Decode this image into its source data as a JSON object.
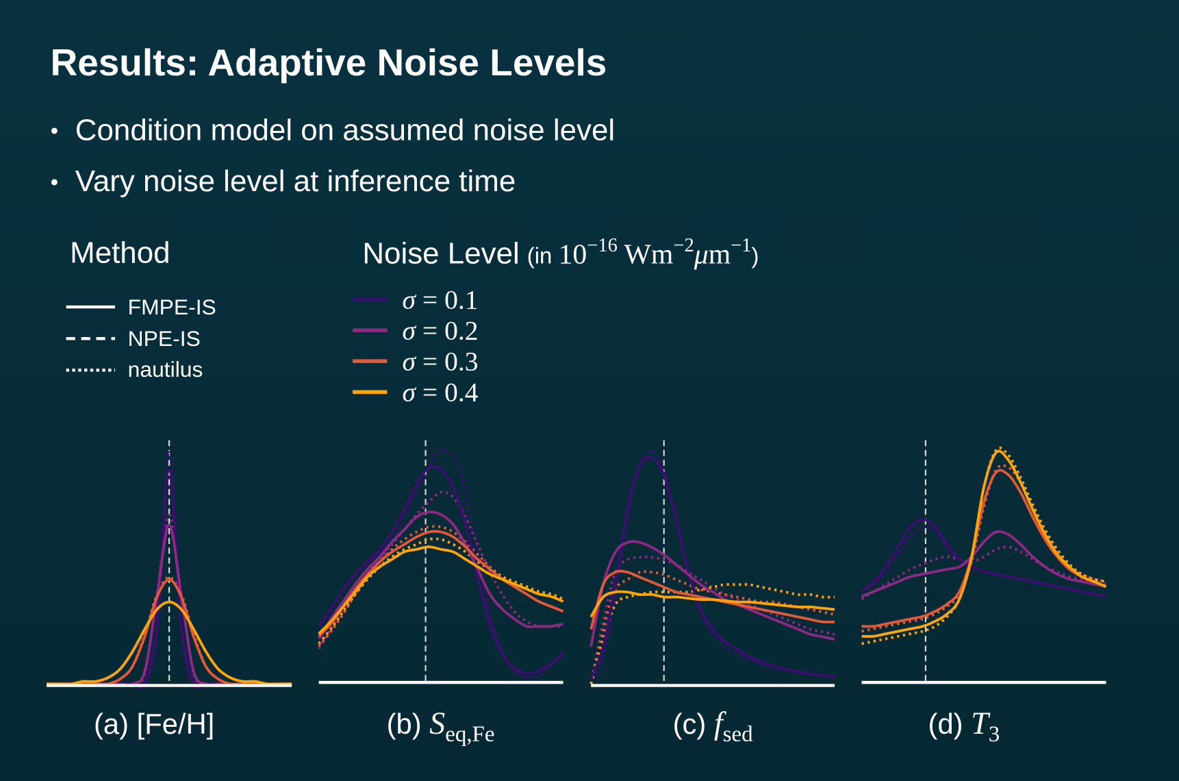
{
  "slide": {
    "title": "Results: Adaptive Noise Levels",
    "bullets": [
      "Condition model on assumed noise level",
      "Vary noise level at inference time"
    ],
    "bullet_glyph": "•"
  },
  "legend_method": {
    "title": "Method",
    "items": [
      {
        "label": "FMPE-IS",
        "style": "solid"
      },
      {
        "label": "NPE-IS",
        "style": "dashed"
      },
      {
        "label": "nautilus",
        "style": "dotted"
      }
    ]
  },
  "legend_noise": {
    "title": "Noise Level",
    "unit_prefix": "(in ",
    "unit_base": "10",
    "unit_exp1": "−16",
    "unit_w": " Wm",
    "unit_exp2": "−2",
    "unit_mu": "μ",
    "unit_m": "m",
    "unit_exp3": "−1",
    "unit_suffix": ")",
    "items": [
      {
        "sigma": "σ",
        "eq": " = 0.1",
        "color": "#3b0f70"
      },
      {
        "sigma": "σ",
        "eq": " = 0.2",
        "color": "#8c2981"
      },
      {
        "sigma": "σ",
        "eq": " = 0.3",
        "color": "#e05a3a"
      },
      {
        "sigma": "σ",
        "eq": " = 0.4",
        "color": "#fca50a"
      }
    ]
  },
  "colors": {
    "background_top": "#08313f",
    "background_bottom": "#062833",
    "truth_line": "#d8d8d8",
    "axis": "#ffffff"
  },
  "chart_data": [
    {
      "type": "line",
      "label_prefix": "(a) ",
      "label_main": "[Fe/H]",
      "label_sub": "",
      "truth_marker": "dashed vertical line at true value",
      "grid": false,
      "series": [
        {
          "name": "σ = 0.1",
          "method": "FMPE-IS",
          "values": [
            0,
            0,
            0,
            0,
            0,
            0,
            0,
            0,
            0,
            0.23,
            0.86,
            0.23,
            0,
            0,
            0,
            0,
            0,
            0,
            0,
            0,
            0
          ]
        },
        {
          "name": "σ = 0.2",
          "method": "FMPE-IS",
          "values": [
            0,
            0,
            0,
            0,
            0,
            0,
            0,
            0,
            0.05,
            0.35,
            0.64,
            0.35,
            0.05,
            0,
            0,
            0,
            0,
            0,
            0,
            0,
            0
          ]
        },
        {
          "name": "σ = 0.3",
          "method": "FMPE-IS",
          "values": [
            0,
            0,
            0,
            0,
            0,
            0,
            0.02,
            0.07,
            0.19,
            0.35,
            0.42,
            0.35,
            0.19,
            0.07,
            0.02,
            0,
            0,
            0,
            0,
            0,
            0
          ]
        },
        {
          "name": "σ = 0.4",
          "method": "FMPE-IS",
          "values": [
            0,
            0,
            0,
            0.01,
            0.01,
            0.025,
            0.06,
            0.13,
            0.22,
            0.3,
            0.33,
            0.3,
            0.22,
            0.13,
            0.06,
            0.025,
            0.01,
            0.01,
            0,
            0,
            0
          ]
        },
        {
          "name": "σ = 0.1",
          "method": "nautilus",
          "values": [
            0,
            0,
            0,
            0,
            0,
            0,
            0,
            0,
            0,
            0.2,
            0.94,
            0.2,
            0,
            0,
            0,
            0,
            0,
            0,
            0,
            0,
            0
          ]
        },
        {
          "name": "σ = 0.2",
          "method": "nautilus",
          "values": [
            0,
            0,
            0,
            0,
            0,
            0,
            0,
            0,
            0.04,
            0.36,
            0.68,
            0.36,
            0.04,
            0,
            0,
            0,
            0,
            0,
            0,
            0,
            0
          ]
        },
        {
          "name": "σ = 0.3",
          "method": "nautilus",
          "values": [
            0,
            0,
            0,
            0,
            0,
            0,
            0.02,
            0.07,
            0.2,
            0.36,
            0.43,
            0.36,
            0.2,
            0.07,
            0.02,
            0,
            0,
            0,
            0,
            0,
            0
          ]
        },
        {
          "name": "σ = 0.4",
          "method": "nautilus",
          "values": [
            0,
            0,
            0,
            0.01,
            0.01,
            0.025,
            0.06,
            0.13,
            0.22,
            0.3,
            0.33,
            0.3,
            0.22,
            0.13,
            0.06,
            0.025,
            0.01,
            0.01,
            0,
            0,
            0
          ]
        }
      ]
    },
    {
      "type": "line",
      "label_prefix": "(b) ",
      "label_main": "S",
      "label_sub": "eq,Fe",
      "truth_marker": "dashed vertical line at true value",
      "grid": false,
      "series": [
        {
          "name": "σ = 0.1",
          "method": "FMPE-IS",
          "values": [
            0.22,
            0.29,
            0.37,
            0.43,
            0.48,
            0.53,
            0.6,
            0.69,
            0.79,
            0.86,
            0.85,
            0.78,
            0.63,
            0.42,
            0.23,
            0.11,
            0.05,
            0.03,
            0.04,
            0.07,
            0.11
          ]
        },
        {
          "name": "σ = 0.2",
          "method": "FMPE-IS",
          "values": [
            0.17,
            0.25,
            0.32,
            0.39,
            0.45,
            0.5,
            0.56,
            0.61,
            0.66,
            0.68,
            0.67,
            0.63,
            0.55,
            0.45,
            0.35,
            0.29,
            0.25,
            0.22,
            0.22,
            0.22,
            0.23
          ]
        },
        {
          "name": "σ = 0.3",
          "method": "FMPE-IS",
          "values": [
            0.18,
            0.23,
            0.3,
            0.37,
            0.43,
            0.48,
            0.52,
            0.55,
            0.58,
            0.6,
            0.6,
            0.58,
            0.54,
            0.49,
            0.45,
            0.41,
            0.38,
            0.35,
            0.32,
            0.3,
            0.28
          ]
        },
        {
          "name": "σ = 0.4",
          "method": "FMPE-IS",
          "values": [
            0.19,
            0.24,
            0.3,
            0.36,
            0.42,
            0.46,
            0.49,
            0.52,
            0.53,
            0.54,
            0.53,
            0.52,
            0.49,
            0.46,
            0.43,
            0.41,
            0.39,
            0.37,
            0.35,
            0.34,
            0.32
          ]
        },
        {
          "name": "σ = 0.1",
          "method": "nautilus",
          "values": [
            0.15,
            0.24,
            0.32,
            0.39,
            0.45,
            0.51,
            0.57,
            0.65,
            0.76,
            0.86,
            0.93,
            0.9,
            0.76,
            0.52,
            0.28,
            0.12,
            0.04,
            0.01,
            0.02,
            0.06,
            0.12
          ]
        },
        {
          "name": "σ = 0.2",
          "method": "nautilus",
          "values": [
            0.13,
            0.21,
            0.29,
            0.36,
            0.43,
            0.49,
            0.55,
            0.61,
            0.67,
            0.72,
            0.76,
            0.74,
            0.66,
            0.55,
            0.44,
            0.35,
            0.28,
            0.24,
            0.22,
            0.22,
            0.22
          ]
        },
        {
          "name": "σ = 0.3",
          "method": "nautilus",
          "values": [
            0.14,
            0.2,
            0.27,
            0.35,
            0.42,
            0.48,
            0.53,
            0.57,
            0.6,
            0.62,
            0.62,
            0.6,
            0.56,
            0.51,
            0.46,
            0.42,
            0.38,
            0.35,
            0.32,
            0.3,
            0.28
          ]
        },
        {
          "name": "σ = 0.4",
          "method": "nautilus",
          "values": [
            0.15,
            0.21,
            0.28,
            0.35,
            0.41,
            0.46,
            0.5,
            0.53,
            0.55,
            0.57,
            0.57,
            0.55,
            0.52,
            0.48,
            0.45,
            0.42,
            0.4,
            0.38,
            0.36,
            0.35,
            0.33
          ]
        }
      ]
    },
    {
      "type": "line",
      "label_prefix": "(c) ",
      "label_main": "f",
      "label_sub": "sed",
      "truth_marker": "dashed vertical line at true value",
      "grid": false,
      "series": [
        {
          "name": "σ = 0.1",
          "method": "FMPE-IS",
          "values": [
            0.02,
            0.15,
            0.4,
            0.7,
            0.88,
            0.91,
            0.84,
            0.66,
            0.45,
            0.3,
            0.22,
            0.17,
            0.14,
            0.11,
            0.09,
            0.07,
            0.06,
            0.05,
            0.04,
            0.035,
            0.03
          ]
        },
        {
          "name": "σ = 0.2",
          "method": "FMPE-IS",
          "values": [
            0.15,
            0.4,
            0.53,
            0.57,
            0.57,
            0.55,
            0.52,
            0.48,
            0.44,
            0.4,
            0.37,
            0.34,
            0.32,
            0.3,
            0.28,
            0.26,
            0.24,
            0.22,
            0.2,
            0.19,
            0.18
          ]
        },
        {
          "name": "σ = 0.3",
          "method": "FMPE-IS",
          "values": [
            0.22,
            0.4,
            0.45,
            0.45,
            0.43,
            0.41,
            0.39,
            0.37,
            0.36,
            0.35,
            0.34,
            0.33,
            0.32,
            0.31,
            0.3,
            0.29,
            0.28,
            0.27,
            0.26,
            0.25,
            0.25
          ]
        },
        {
          "name": "σ = 0.4",
          "method": "FMPE-IS",
          "values": [
            0.27,
            0.35,
            0.37,
            0.37,
            0.36,
            0.36,
            0.35,
            0.35,
            0.345,
            0.34,
            0.34,
            0.335,
            0.33,
            0.33,
            0.325,
            0.32,
            0.315,
            0.31,
            0.31,
            0.305,
            0.3
          ]
        },
        {
          "name": "σ = 0.1",
          "method": "nautilus",
          "values": [
            0,
            0.1,
            0.36,
            0.68,
            0.88,
            0.94,
            0.86,
            0.66,
            0.44,
            0.28,
            0.2,
            0.15,
            0.12,
            0.1,
            0.08,
            0.07,
            0.06,
            0.05,
            0.04,
            0.035,
            0.03
          ]
        },
        {
          "name": "σ = 0.2",
          "method": "nautilus",
          "values": [
            0,
            0.25,
            0.45,
            0.5,
            0.51,
            0.51,
            0.5,
            0.48,
            0.45,
            0.42,
            0.39,
            0.36,
            0.34,
            0.32,
            0.3,
            0.28,
            0.26,
            0.24,
            0.22,
            0.21,
            0.2
          ]
        },
        {
          "name": "σ = 0.3",
          "method": "nautilus",
          "values": [
            0,
            0.22,
            0.38,
            0.42,
            0.45,
            0.45,
            0.44,
            0.42,
            0.4,
            0.38,
            0.37,
            0.36,
            0.35,
            0.34,
            0.33,
            0.33,
            0.32,
            0.31,
            0.3,
            0.29,
            0.28
          ]
        },
        {
          "name": "σ = 0.4",
          "method": "nautilus",
          "values": [
            0,
            0.18,
            0.32,
            0.35,
            0.36,
            0.37,
            0.37,
            0.37,
            0.37,
            0.38,
            0.39,
            0.4,
            0.4,
            0.4,
            0.39,
            0.38,
            0.37,
            0.36,
            0.36,
            0.35,
            0.35
          ]
        }
      ]
    },
    {
      "type": "line",
      "label_prefix": "(d) ",
      "label_main": "T",
      "label_sub": "3",
      "truth_marker": "dashed vertical line at true value",
      "grid": false,
      "series": [
        {
          "name": "σ = 0.1",
          "method": "FMPE-IS",
          "values": [
            0.36,
            0.4,
            0.46,
            0.54,
            0.62,
            0.65,
            0.62,
            0.55,
            0.49,
            0.46,
            0.44,
            0.43,
            0.42,
            0.41,
            0.4,
            0.39,
            0.38,
            0.37,
            0.36,
            0.35,
            0.34
          ]
        },
        {
          "name": "σ = 0.2",
          "method": "FMPE-IS",
          "values": [
            0.34,
            0.36,
            0.38,
            0.4,
            0.42,
            0.43,
            0.44,
            0.45,
            0.46,
            0.5,
            0.56,
            0.6,
            0.59,
            0.55,
            0.5,
            0.46,
            0.43,
            0.41,
            0.4,
            0.39,
            0.38
          ]
        },
        {
          "name": "σ = 0.3",
          "method": "FMPE-IS",
          "values": [
            0.22,
            0.22,
            0.23,
            0.24,
            0.25,
            0.26,
            0.28,
            0.31,
            0.36,
            0.5,
            0.72,
            0.84,
            0.83,
            0.76,
            0.66,
            0.57,
            0.5,
            0.45,
            0.42,
            0.4,
            0.38
          ]
        },
        {
          "name": "σ = 0.4",
          "method": "FMPE-IS",
          "values": [
            0.18,
            0.18,
            0.19,
            0.2,
            0.21,
            0.22,
            0.24,
            0.27,
            0.33,
            0.5,
            0.78,
            0.92,
            0.89,
            0.8,
            0.69,
            0.59,
            0.51,
            0.46,
            0.42,
            0.4,
            0.38
          ]
        },
        {
          "name": "σ = 0.1",
          "method": "nautilus",
          "values": [
            0.36,
            0.39,
            0.44,
            0.51,
            0.58,
            0.62,
            0.6,
            0.54,
            0.49,
            0.46,
            0.44,
            0.43,
            0.42,
            0.41,
            0.4,
            0.39,
            0.38,
            0.37,
            0.36,
            0.35,
            0.34
          ]
        },
        {
          "name": "σ = 0.2",
          "method": "nautilus",
          "values": [
            0.33,
            0.36,
            0.39,
            0.42,
            0.45,
            0.47,
            0.49,
            0.5,
            0.49,
            0.48,
            0.5,
            0.53,
            0.54,
            0.52,
            0.49,
            0.46,
            0.44,
            0.42,
            0.41,
            0.4,
            0.39
          ]
        },
        {
          "name": "σ = 0.3",
          "method": "nautilus",
          "values": [
            0.2,
            0.21,
            0.22,
            0.23,
            0.24,
            0.25,
            0.27,
            0.3,
            0.35,
            0.48,
            0.7,
            0.85,
            0.86,
            0.8,
            0.7,
            0.6,
            0.52,
            0.46,
            0.43,
            0.41,
            0.4
          ]
        },
        {
          "name": "σ = 0.4",
          "method": "nautilus",
          "values": [
            0.15,
            0.16,
            0.17,
            0.18,
            0.19,
            0.2,
            0.22,
            0.26,
            0.33,
            0.5,
            0.78,
            0.93,
            0.91,
            0.82,
            0.71,
            0.61,
            0.53,
            0.47,
            0.43,
            0.41,
            0.4
          ]
        }
      ]
    }
  ]
}
